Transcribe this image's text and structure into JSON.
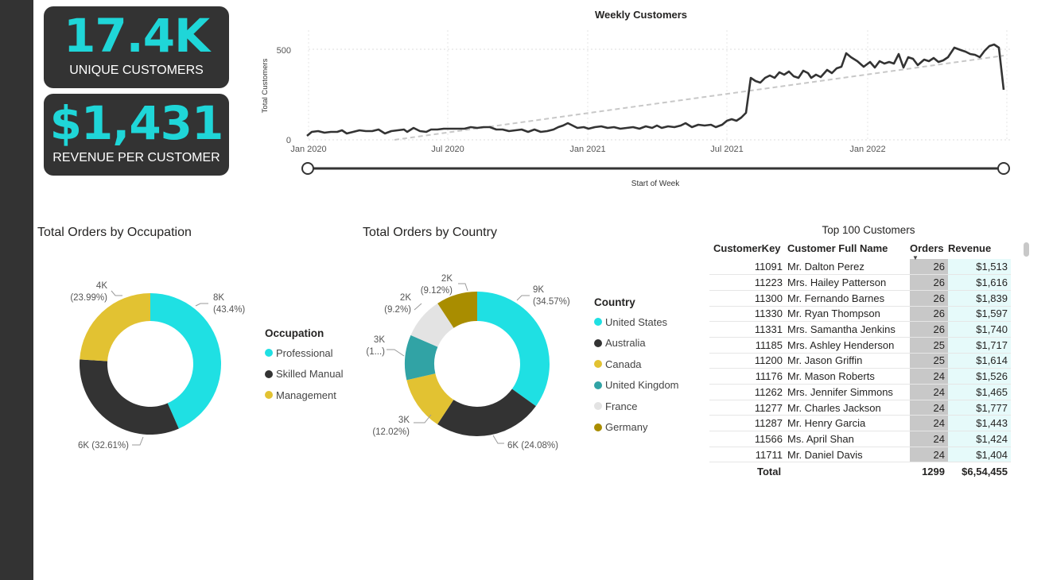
{
  "kpis": [
    {
      "value": "17.4K",
      "label": "UNIQUE CUSTOMERS",
      "color": "#1fd6d8"
    },
    {
      "value": "$1,431",
      "label": "REVENUE PER CUSTOMER",
      "color": "#1fd6d8"
    }
  ],
  "weekly": {
    "title": "Weekly Customers",
    "ylabel": "Total Customers",
    "xlabel": "Start of Week",
    "y_ticks": [
      "500",
      "0"
    ],
    "x_ticks": [
      "Jan 2020",
      "Jul 2020",
      "Jan 2021",
      "Jul 2021",
      "Jan 2022"
    ]
  },
  "occupation": {
    "title": "Total Orders by Occupation",
    "legend_title": "Occupation",
    "items": [
      {
        "name": "Professional",
        "pct": 43.4,
        "color": "#1fe0e3",
        "label_value": "8K",
        "label_pct": "(43.4%)"
      },
      {
        "name": "Skilled Manual",
        "pct": 32.61,
        "color": "#333333",
        "label_value": "6K",
        "label_pct": "(32.61%)"
      },
      {
        "name": "Management",
        "pct": 23.99,
        "color": "#e2c232",
        "label_value": "4K",
        "label_pct": "(23.99%)"
      }
    ]
  },
  "country": {
    "title": "Total Orders by Country",
    "legend_title": "Country",
    "items": [
      {
        "name": "United States",
        "pct": 34.57,
        "color": "#1fe0e3",
        "label_value": "9K",
        "label_pct": "(34.57%)"
      },
      {
        "name": "Australia",
        "pct": 24.08,
        "color": "#333333",
        "label_value": "6K",
        "label_pct": "(24.08%)"
      },
      {
        "name": "Canada",
        "pct": 12.02,
        "color": "#e2c232",
        "label_value": "3K",
        "label_pct": "(12.02%)"
      },
      {
        "name": "United Kingdom",
        "pct": 9.99,
        "color": "#31a3a5",
        "label_value": "3K",
        "label_pct": "(1...)"
      },
      {
        "name": "France",
        "pct": 9.2,
        "color": "#e3e3e3",
        "label_value": "2K",
        "label_pct": "(9.2%)"
      },
      {
        "name": "Germany",
        "pct": 9.12,
        "color": "#a98d00",
        "label_value": "2K",
        "label_pct": "(9.12%)"
      }
    ]
  },
  "top_customers": {
    "title": "Top 100 Customers",
    "columns": [
      "CustomerKey",
      "Customer Full Name",
      "Orders",
      "Revenue"
    ],
    "rows": [
      [
        "11091",
        "Mr. Dalton Perez",
        "26",
        "$1,513"
      ],
      [
        "11223",
        "Mrs. Hailey Patterson",
        "26",
        "$1,616"
      ],
      [
        "11300",
        "Mr. Fernando Barnes",
        "26",
        "$1,839"
      ],
      [
        "11330",
        "Mr. Ryan Thompson",
        "26",
        "$1,597"
      ],
      [
        "11331",
        "Mrs. Samantha Jenkins",
        "26",
        "$1,740"
      ],
      [
        "11185",
        "Mrs. Ashley Henderson",
        "25",
        "$1,717"
      ],
      [
        "11200",
        "Mr. Jason Griffin",
        "25",
        "$1,614"
      ],
      [
        "11176",
        "Mr. Mason Roberts",
        "24",
        "$1,526"
      ],
      [
        "11262",
        "Mrs. Jennifer Simmons",
        "24",
        "$1,465"
      ],
      [
        "11277",
        "Mr. Charles Jackson",
        "24",
        "$1,777"
      ],
      [
        "11287",
        "Mr. Henry Garcia",
        "24",
        "$1,443"
      ],
      [
        "11566",
        "Ms. April Shan",
        "24",
        "$1,424"
      ],
      [
        "11711",
        "Mr. Daniel Davis",
        "24",
        "$1,404"
      ]
    ],
    "total": {
      "label": "Total",
      "orders": "1299",
      "revenue": "$6,54,455"
    }
  }
}
